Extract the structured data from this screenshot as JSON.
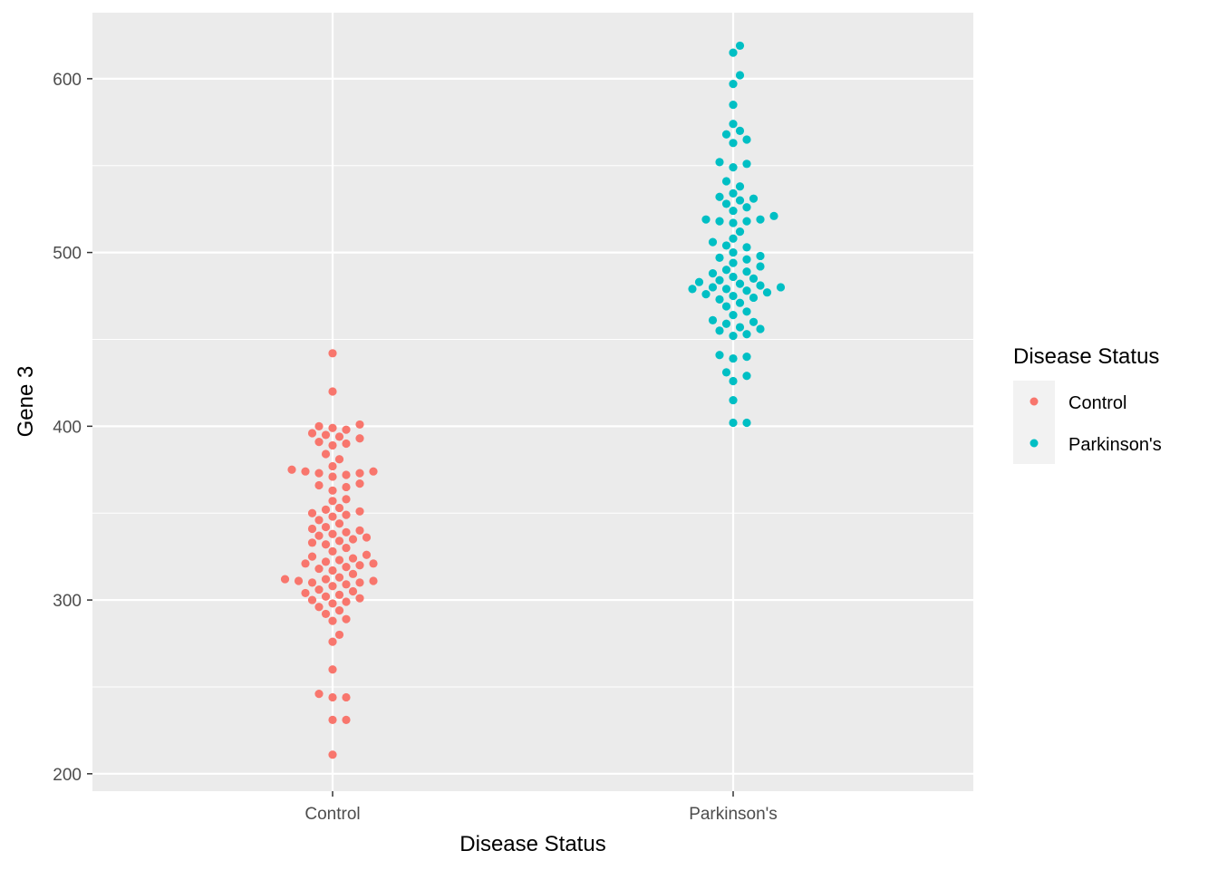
{
  "chart_data": {
    "type": "scatter",
    "subtype": "beeswarm",
    "title": "",
    "xlabel": "Disease Status",
    "ylabel": "Gene 3",
    "categories": [
      "Control",
      "Parkinson's"
    ],
    "ylim": [
      190,
      638
    ],
    "yticks": [
      200,
      300,
      400,
      500,
      600
    ],
    "grid": true,
    "legend": {
      "title": "Disease Status",
      "position": "right",
      "entries": [
        "Control",
        "Parkinson's"
      ]
    },
    "series": [
      {
        "name": "Control",
        "color": "#F8766D",
        "values": [
          442,
          420,
          401,
          400,
          399,
          398,
          396,
          395,
          394,
          393,
          391,
          390,
          389,
          384,
          381,
          377,
          375,
          374,
          374,
          373,
          373,
          372,
          371,
          367,
          366,
          365,
          363,
          358,
          357,
          353,
          352,
          351,
          350,
          349,
          348,
          346,
          344,
          342,
          341,
          340,
          339,
          338,
          337,
          336,
          335,
          334,
          333,
          332,
          330,
          328,
          326,
          325,
          324,
          323,
          322,
          321,
          321,
          320,
          319,
          318,
          317,
          315,
          313,
          312,
          312,
          311,
          311,
          310,
          310,
          309,
          308,
          306,
          305,
          304,
          303,
          302,
          301,
          300,
          299,
          298,
          296,
          294,
          292,
          289,
          288,
          280,
          276,
          260,
          246,
          244,
          244,
          231,
          231,
          211
        ]
      },
      {
        "name": "Parkinson's",
        "color": "#00BFC4",
        "values": [
          619,
          615,
          602,
          597,
          585,
          574,
          570,
          568,
          565,
          563,
          552,
          551,
          549,
          541,
          538,
          534,
          532,
          531,
          530,
          528,
          526,
          524,
          521,
          519,
          519,
          518,
          518,
          517,
          512,
          508,
          506,
          504,
          503,
          500,
          498,
          497,
          496,
          494,
          492,
          490,
          489,
          488,
          486,
          485,
          484,
          483,
          482,
          481,
          480,
          480,
          479,
          479,
          478,
          477,
          476,
          475,
          474,
          473,
          471,
          469,
          466,
          464,
          461,
          460,
          459,
          457,
          456,
          455,
          453,
          452,
          441,
          440,
          439,
          431,
          429,
          426,
          415,
          402,
          402
        ]
      }
    ]
  }
}
